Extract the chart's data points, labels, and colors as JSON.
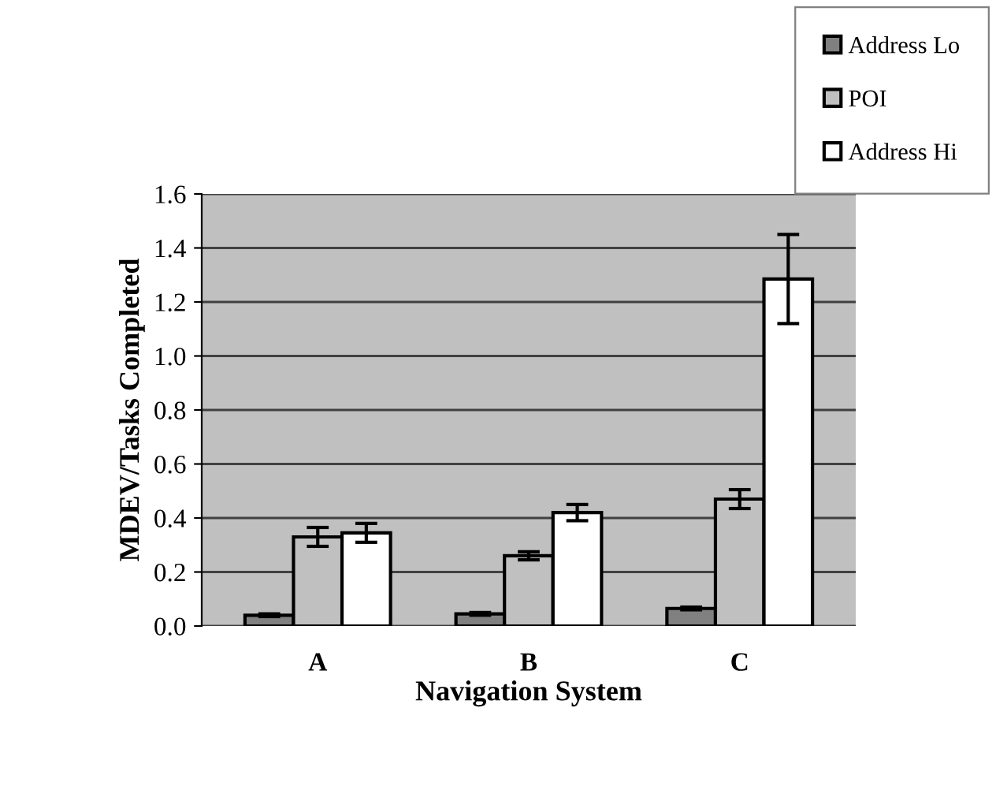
{
  "chart_data": {
    "type": "bar",
    "xlabel": "Navigation System",
    "ylabel": "MDEV/Tasks Completed",
    "categories": [
      "A",
      "B",
      "C"
    ],
    "series": [
      {
        "name": "Address Lo",
        "color": "#808080",
        "values": [
          0.04,
          0.045,
          0.065
        ],
        "errors": [
          0.005,
          0.005,
          0.005
        ]
      },
      {
        "name": "POI",
        "color": "#c0c0c0",
        "values": [
          0.33,
          0.26,
          0.47
        ],
        "errors": [
          0.035,
          0.015,
          0.035
        ]
      },
      {
        "name": "Address Hi",
        "color": "#ffffff",
        "values": [
          0.345,
          0.42,
          1.285
        ],
        "errors": [
          0.035,
          0.03,
          0.165
        ]
      }
    ],
    "ylim": [
      0,
      1.6
    ],
    "yticks": [
      {
        "value": 0,
        "label": "0.0"
      },
      {
        "value": 0.2,
        "label": "0.2"
      },
      {
        "value": 0.4,
        "label": "0.4"
      },
      {
        "value": 0.6,
        "label": "0.6"
      },
      {
        "value": 0.8,
        "label": "0.8"
      },
      {
        "value": 1.0,
        "label": "1.0"
      },
      {
        "value": 1.2,
        "label": "1.2"
      },
      {
        "value": 1.4,
        "label": "1.4"
      },
      {
        "value": 1.6,
        "label": "1.6"
      }
    ],
    "grid": "y",
    "legend": "top right"
  }
}
